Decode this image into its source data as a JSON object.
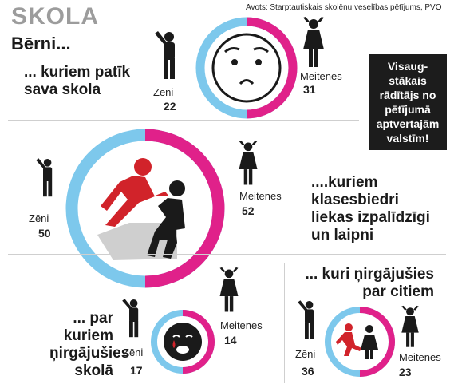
{
  "header": {
    "title": "SKOLA",
    "source": "Avots: Starptautiskais skolēnu veselības pētījums, PVO",
    "subtitle": "Bērni..."
  },
  "note": "Visaug-stākais rādītājs no pētījumā aptvertajām valstīm!",
  "note_lines": [
    "Visaug-",
    "stākais",
    "rādītājs no",
    "pētījumā",
    "aptvertajām",
    "valstīm!"
  ],
  "colors": {
    "boys": "#7dc8ec",
    "girls": "#e0218a",
    "dark": "#1c1c1c",
    "red": "#d1232a"
  },
  "sections": [
    {
      "question_lines": [
        "... kuriem patīk",
        "sava skola"
      ],
      "boys_label": "Zēni",
      "boys_value": "22",
      "girls_label": "Meitenes",
      "girls_value": "31",
      "icon": "worried-face-icon"
    },
    {
      "question_lines": [
        "....kuriem",
        "klasesbiedri",
        "liekas izpalīdzīgi",
        "un laipni"
      ],
      "boys_label": "Zēni",
      "boys_value": "50",
      "girls_label": "Meitenes",
      "girls_value": "52",
      "icon": "helping-hand-icon"
    },
    {
      "question_lines": [
        "... par",
        "kuriem",
        "ņirgājušies",
        "skolā"
      ],
      "boys_label": "Zēni",
      "boys_value": "17",
      "girls_label": "Meitenes",
      "girls_value": "14",
      "icon": "crying-face-icon"
    },
    {
      "question_lines": [
        "... kuri ņirgājušies",
        "par citiem"
      ],
      "boys_label": "Zēni",
      "boys_value": "36",
      "girls_label": "Meitenes",
      "girls_value": "23",
      "icon": "bully-kicking-icon"
    }
  ]
}
